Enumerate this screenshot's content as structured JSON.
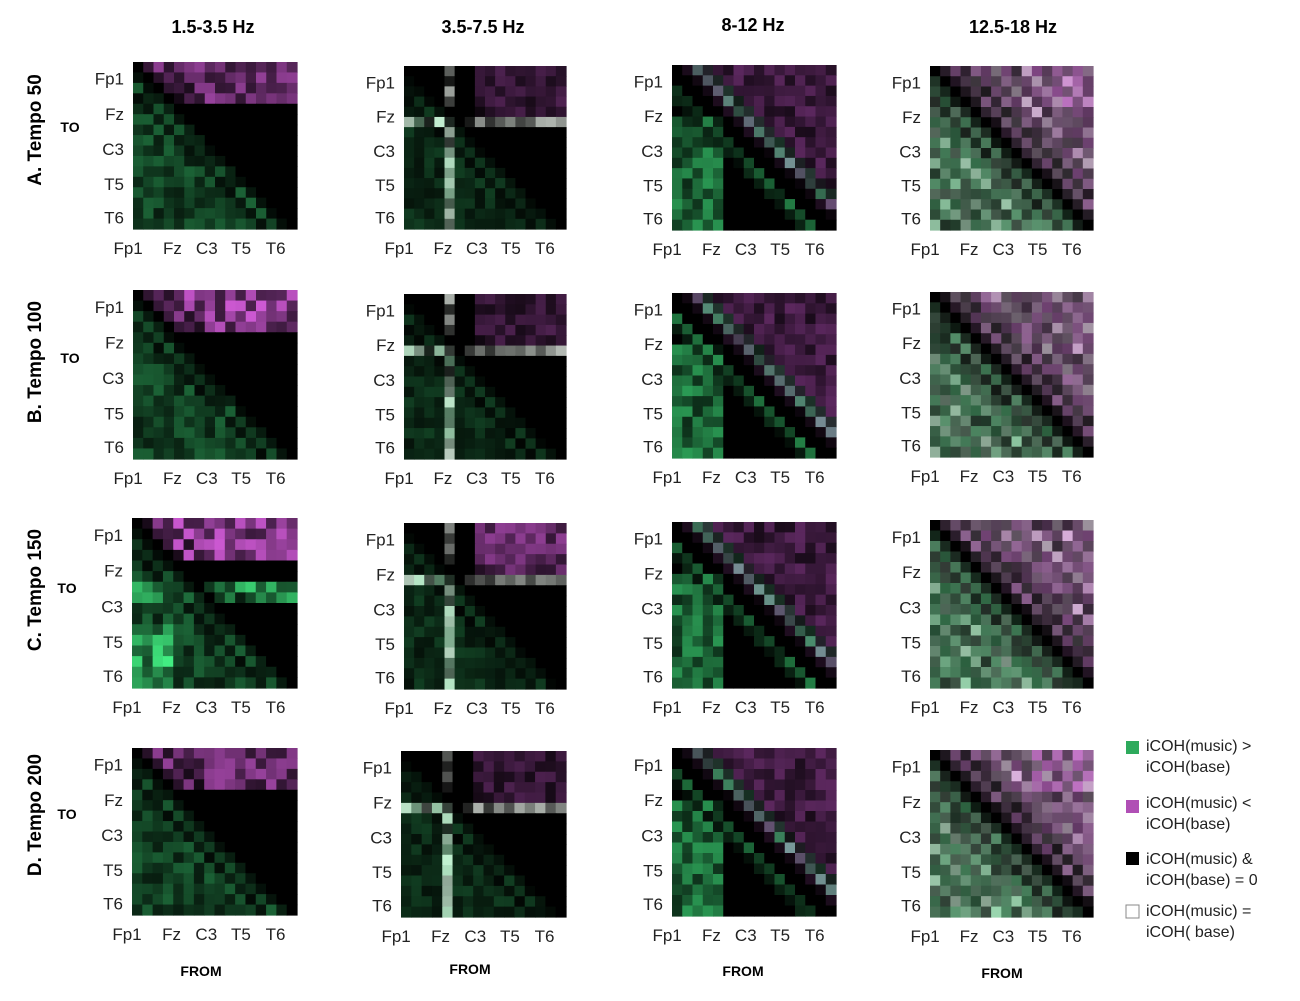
{
  "chart_data": {
    "type": "heatmap",
    "columns": [
      "1.5-3.5 Hz",
      "3.5-7.5 Hz",
      "8-12 Hz",
      "12.5-18 Hz"
    ],
    "rows": [
      "A. Tempo 50",
      "B. Tempo 100",
      "C. Tempo 150",
      "D. Tempo 200"
    ],
    "tick_labels": [
      "Fp1",
      "Fz",
      "C3",
      "T5",
      "T6"
    ],
    "matrix_size": 16,
    "to_label": "TO",
    "from_label": "FROM",
    "legend": [
      {
        "line1": "iCOH(music) >",
        "line2": "iCOH(base)",
        "color": "#2eaa5c"
      },
      {
        "line1": "iCOH(music) <",
        "line2": "iCOH(base)",
        "color": "#b04fb5"
      },
      {
        "line1": "iCOH(music) &",
        "line2": "iCOH(base) = 0",
        "color": "#000000"
      },
      {
        "line1": "iCOH(music) =",
        "line2": "iCOH( base)",
        "color": "#ffffff"
      }
    ],
    "colors": {
      "green": "#3ee07a",
      "magenta": "#d05ad6",
      "black": "#000000",
      "white": "#e8f0e8"
    }
  }
}
